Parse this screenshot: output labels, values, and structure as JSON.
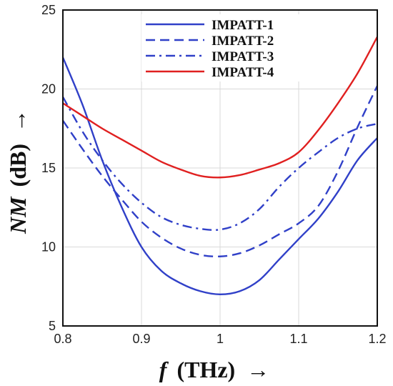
{
  "chart_data": {
    "type": "line",
    "title": "",
    "xlabel": {
      "var": "f",
      "unit": "(THz)",
      "arrow": "→"
    },
    "ylabel": {
      "var": "NM",
      "unit": "(dB)",
      "arrow": "→"
    },
    "xlim": [
      0.8,
      1.2
    ],
    "ylim": [
      5,
      25
    ],
    "xticks": [
      0.8,
      0.9,
      1,
      1.1,
      1.2
    ],
    "xtick_labels": [
      "0.8",
      "0.9",
      "1",
      "1.1",
      "1.2"
    ],
    "yticks": [
      5,
      10,
      15,
      20,
      25
    ],
    "ytick_labels": [
      "5",
      "10",
      "15",
      "20",
      "25"
    ],
    "grid": true,
    "legend_position": "top-center",
    "series": [
      {
        "name": "IMPATT-1",
        "color": "#3040c8",
        "dash": "solid",
        "x": [
          0.8,
          0.825,
          0.85,
          0.875,
          0.9,
          0.925,
          0.95,
          0.975,
          1.0,
          1.025,
          1.05,
          1.075,
          1.1,
          1.125,
          1.15,
          1.175,
          1.2
        ],
        "y": [
          22.0,
          19.0,
          15.5,
          12.5,
          10.0,
          8.5,
          7.7,
          7.2,
          7.0,
          7.2,
          7.9,
          9.2,
          10.5,
          11.8,
          13.5,
          15.5,
          16.9
        ]
      },
      {
        "name": "IMPATT-2",
        "color": "#3040c8",
        "dash": "dashed",
        "x": [
          0.8,
          0.825,
          0.85,
          0.875,
          0.9,
          0.925,
          0.95,
          0.975,
          1.0,
          1.025,
          1.05,
          1.075,
          1.1,
          1.125,
          1.15,
          1.175,
          1.2
        ],
        "y": [
          18.0,
          16.2,
          14.5,
          13.0,
          11.6,
          10.6,
          9.9,
          9.5,
          9.4,
          9.6,
          10.1,
          10.8,
          11.5,
          12.6,
          14.8,
          17.6,
          20.2
        ]
      },
      {
        "name": "IMPATT-3",
        "color": "#3040c8",
        "dash": "dashdot",
        "x": [
          0.8,
          0.825,
          0.85,
          0.875,
          0.9,
          0.925,
          0.95,
          0.975,
          1.0,
          1.025,
          1.05,
          1.075,
          1.1,
          1.125,
          1.15,
          1.175,
          1.2
        ],
        "y": [
          19.5,
          17.3,
          15.5,
          14.0,
          12.8,
          11.9,
          11.4,
          11.15,
          11.1,
          11.5,
          12.4,
          13.8,
          15.0,
          16.0,
          16.9,
          17.5,
          17.8
        ]
      },
      {
        "name": "IMPATT-4",
        "color": "#e02020",
        "dash": "solid",
        "x": [
          0.8,
          0.825,
          0.85,
          0.875,
          0.9,
          0.925,
          0.95,
          0.975,
          1.0,
          1.025,
          1.05,
          1.075,
          1.1,
          1.125,
          1.15,
          1.175,
          1.2
        ],
        "y": [
          19.1,
          18.3,
          17.5,
          16.8,
          16.1,
          15.4,
          14.9,
          14.5,
          14.4,
          14.55,
          14.9,
          15.3,
          16.0,
          17.4,
          19.1,
          21.0,
          23.3
        ]
      }
    ]
  }
}
